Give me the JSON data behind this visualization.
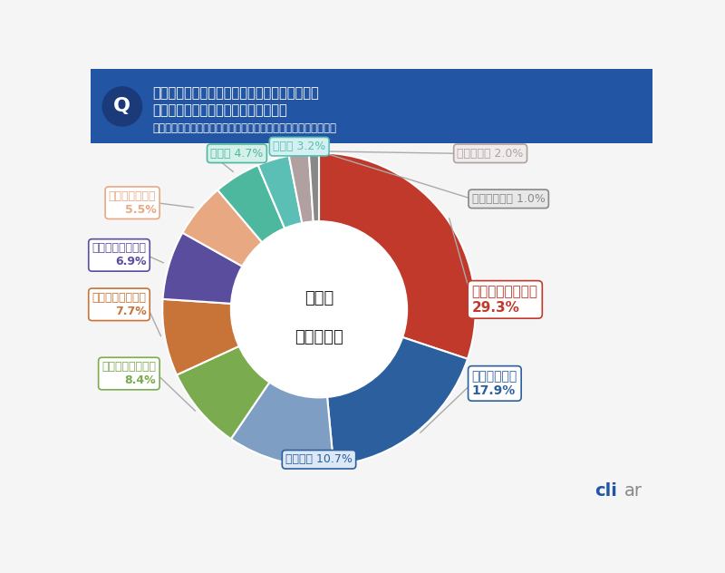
{
  "title_q": "Q",
  "title_text1": "その車種を選んだ理由は次のうちどれですか？",
  "title_text2": "最も当てはまるものをお選びください",
  "title_text3": "（複数車種を回答の場合はひとつめに選んだ車種について回答）",
  "center_text1": "車種を",
  "center_text2": "選んだ理由",
  "labels": [
    "見た目・デザイン",
    "燃費・維持費",
    "車両価格",
    "乗り心地・快適性",
    "車両の状態・品質",
    "パワー・走行性能",
    "荷室・積載容量",
    "安全性",
    "その他",
    "機能・装備",
    "話題性・評判"
  ],
  "values": [
    29.3,
    17.9,
    10.7,
    8.4,
    7.7,
    6.9,
    5.5,
    4.7,
    3.2,
    2.0,
    1.0
  ],
  "colors": [
    "#c0392b",
    "#2c5f9e",
    "#7f9ec4",
    "#7aab4e",
    "#c87337",
    "#5b4d9e",
    "#e8a882",
    "#4eb89e",
    "#5bbfb5",
    "#b0a0a0",
    "#888888"
  ],
  "label_colors": [
    "#c0392b",
    "#2c5f9e",
    "#7f9ec4",
    "#7aab4e",
    "#c87337",
    "#5b4d9e",
    "#e8a882",
    "#4eb89e",
    "#5bbfb5",
    "#b0a0a0",
    "#888888"
  ],
  "bg_color": "#f5f5f5",
  "header_bg": "#2255a4",
  "header_q_bg": "#1a3a7a"
}
